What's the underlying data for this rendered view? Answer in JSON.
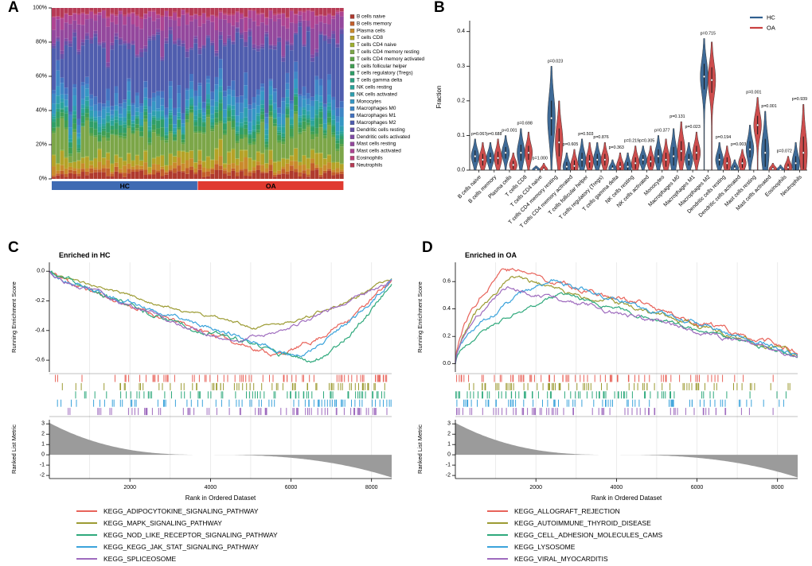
{
  "figure": {
    "panels": [
      {
        "label": "A"
      },
      {
        "label": "B"
      },
      {
        "label": "C"
      },
      {
        "label": "D"
      }
    ]
  },
  "chart_data": [
    {
      "id": "A",
      "type": "bar",
      "stacked": true,
      "ylabel": "Relative Percent",
      "yticks": [
        "0%",
        "20%",
        "40%",
        "60%",
        "80%",
        "100%"
      ],
      "groups": [
        {
          "label": "HC",
          "color": "#3F6BB3",
          "n": 35
        },
        {
          "label": "OA",
          "color": "#E03A30",
          "n": 35
        }
      ],
      "cell_types": [
        {
          "name": "B cells naive",
          "color": "#B03A2E",
          "mean_fraction": 0.03
        },
        {
          "name": "B cells memory",
          "color": "#C35F2B",
          "mean_fraction": 0.02
        },
        {
          "name": "Plasma cells",
          "color": "#C98A2C",
          "mean_fraction": 0.03
        },
        {
          "name": "T cells CD8",
          "color": "#B5A227",
          "mean_fraction": 0.045
        },
        {
          "name": "T cells CD4 naive",
          "color": "#9DB030",
          "mean_fraction": 0.004
        },
        {
          "name": "T cells CD4 memory resting",
          "color": "#7CA648",
          "mean_fraction": 0.13
        },
        {
          "name": "T cells CD4 memory activated",
          "color": "#5BA347",
          "mean_fraction": 0.012
        },
        {
          "name": "T cells follicular helper",
          "color": "#3F9E53",
          "mean_fraction": 0.028
        },
        {
          "name": "T cells regulatory (Tregs)",
          "color": "#2F9E68",
          "mean_fraction": 0.03
        },
        {
          "name": "T cells gamma delta",
          "color": "#2BA183",
          "mean_fraction": 0.012
        },
        {
          "name": "NK cells resting",
          "color": "#2AA39B",
          "mean_fraction": 0.02
        },
        {
          "name": "NK cells activated",
          "color": "#2E9FB0",
          "mean_fraction": 0.025
        },
        {
          "name": "Monocytes",
          "color": "#3597C4",
          "mean_fraction": 0.04
        },
        {
          "name": "Macrophages M0",
          "color": "#3E86C6",
          "mean_fraction": 0.05
        },
        {
          "name": "Macrophages M1",
          "color": "#4372C0",
          "mean_fraction": 0.035
        },
        {
          "name": "Macrophages M2",
          "color": "#4F5DAE",
          "mean_fraction": 0.27
        },
        {
          "name": "Dendritic cells resting",
          "color": "#6452A8",
          "mean_fraction": 0.02
        },
        {
          "name": "Dendritic cells activated",
          "color": "#7E4BA5",
          "mean_fraction": 0.012
        },
        {
          "name": "Mast cells resting",
          "color": "#94489D",
          "mean_fraction": 0.1
        },
        {
          "name": "Mast cells activated",
          "color": "#AE4492",
          "mean_fraction": 0.04
        },
        {
          "name": "Eosinophils",
          "color": "#BC4078",
          "mean_fraction": 0.006
        },
        {
          "name": "Neutrophils",
          "color": "#B63A55",
          "mean_fraction": 0.03
        }
      ]
    },
    {
      "id": "B",
      "type": "violin",
      "ylabel": "Fraction",
      "ylim": [
        0,
        0.4
      ],
      "yticks": [
        0,
        0.1,
        0.2,
        0.3,
        0.4
      ],
      "legend": [
        {
          "label": "HC",
          "color": "#2F5F8F"
        },
        {
          "label": "OA",
          "color": "#C94040"
        }
      ],
      "categories": [
        {
          "name": "B cells naive",
          "p": "p=0.067",
          "hc": {
            "median": 0.04,
            "max": 0.09
          },
          "oa": {
            "median": 0.03,
            "max": 0.08
          }
        },
        {
          "name": "B cells memory",
          "p": "p=0.688",
          "hc": {
            "median": 0.035,
            "max": 0.08
          },
          "oa": {
            "median": 0.035,
            "max": 0.09
          }
        },
        {
          "name": "Plasma cells",
          "p": "p<0.001",
          "hc": {
            "median": 0.05,
            "max": 0.1
          },
          "oa": {
            "median": 0.015,
            "max": 0.05
          }
        },
        {
          "name": "T cells CD8",
          "p": "p=0.698",
          "hc": {
            "median": 0.05,
            "max": 0.12
          },
          "oa": {
            "median": 0.05,
            "max": 0.11
          }
        },
        {
          "name": "T cells CD4 naive",
          "p": "p=1.000",
          "hc": {
            "median": 0.002,
            "max": 0.012
          },
          "oa": {
            "median": 0.002,
            "max": 0.02
          }
        },
        {
          "name": "T cells CD4 memory resting",
          "p": "p=0.023",
          "hc": {
            "median": 0.15,
            "max": 0.3
          },
          "oa": {
            "median": 0.08,
            "max": 0.2
          }
        },
        {
          "name": "T cells CD4 memory activated",
          "p": "p=0.605",
          "hc": {
            "median": 0.01,
            "max": 0.05
          },
          "oa": {
            "median": 0.012,
            "max": 0.06
          }
        },
        {
          "name": "T cells follicular helper",
          "p": "p=0.503",
          "hc": {
            "median": 0.03,
            "max": 0.09
          },
          "oa": {
            "median": 0.025,
            "max": 0.08
          }
        },
        {
          "name": "T cells regulatory (Tregs)",
          "p": "p=0.876",
          "hc": {
            "median": 0.03,
            "max": 0.08
          },
          "oa": {
            "median": 0.03,
            "max": 0.08
          }
        },
        {
          "name": "T cells gamma delta",
          "p": "p=0.363",
          "hc": {
            "median": 0.005,
            "max": 0.03
          },
          "oa": {
            "median": 0.01,
            "max": 0.05
          }
        },
        {
          "name": "NK cells resting",
          "p": "p=0.219",
          "hc": {
            "median": 0.01,
            "max": 0.05
          },
          "oa": {
            "median": 0.02,
            "max": 0.07
          }
        },
        {
          "name": "NK cells activated",
          "p": "p=0.305",
          "hc": {
            "median": 0.03,
            "max": 0.07
          },
          "oa": {
            "median": 0.025,
            "max": 0.07
          }
        },
        {
          "name": "Monocytes",
          "p": "p=0.377",
          "hc": {
            "median": 0.04,
            "max": 0.1
          },
          "oa": {
            "median": 0.03,
            "max": 0.09
          }
        },
        {
          "name": "Macrophages M0",
          "p": "p=0.131",
          "hc": {
            "median": 0.04,
            "max": 0.12
          },
          "oa": {
            "median": 0.055,
            "max": 0.14
          }
        },
        {
          "name": "Macrophages M1",
          "p": "p=0.023",
          "hc": {
            "median": 0.03,
            "max": 0.08
          },
          "oa": {
            "median": 0.05,
            "max": 0.11
          }
        },
        {
          "name": "Macrophages M2",
          "p": "p=0.715",
          "hc": {
            "median": 0.27,
            "max": 0.38
          },
          "oa": {
            "median": 0.26,
            "max": 0.37
          }
        },
        {
          "name": "Dendritic cells resting",
          "p": "p=0.194",
          "hc": {
            "median": 0.03,
            "max": 0.08
          },
          "oa": {
            "median": 0.02,
            "max": 0.07
          }
        },
        {
          "name": "Dendritic cells activated",
          "p": "p=0.003",
          "hc": {
            "median": 0.005,
            "max": 0.03
          },
          "oa": {
            "median": 0.02,
            "max": 0.06
          }
        },
        {
          "name": "Mast cells resting",
          "p": "p=0.001",
          "hc": {
            "median": 0.06,
            "max": 0.13
          },
          "oa": {
            "median": 0.13,
            "max": 0.21
          }
        },
        {
          "name": "Mast cells activated",
          "p": "p=0.001",
          "hc": {
            "median": 0.05,
            "max": 0.17
          },
          "oa": {
            "median": 0.004,
            "max": 0.02
          }
        },
        {
          "name": "Eosinophils",
          "p": "p=0.072",
          "hc": {
            "median": 0.002,
            "max": 0.015
          },
          "oa": {
            "median": 0.008,
            "max": 0.04
          }
        },
        {
          "name": "Neutrophils",
          "p": "p=0.939",
          "hc": {
            "median": 0.02,
            "max": 0.08
          },
          "oa": {
            "median": 0.05,
            "max": 0.19
          }
        }
      ]
    },
    {
      "id": "C",
      "type": "line",
      "title": "Enriched in HC",
      "ylabel_top": "Running Enrichment Score",
      "ylabel_bottom": "Ranked List Metric",
      "xlabel": "Rank in Ordered Dataset",
      "x_max": 8500,
      "xticks": [
        2000,
        4000,
        6000,
        8000
      ],
      "es_ticks": [
        0.0,
        -0.2,
        -0.4,
        -0.6
      ],
      "rlm_ticks": [
        3,
        2,
        1,
        0,
        -1,
        -2
      ],
      "series": [
        {
          "name": "KEGG_ADIPOCYTOKINE_SIGNALING_PATHWAY",
          "color": "#E8635A",
          "es_extreme": -0.56,
          "peak_pos": 0.66
        },
        {
          "name": "KEGG_MAPK_SIGNALING_PATHWAY",
          "color": "#9C9B33",
          "es_extreme": -0.38,
          "peak_pos": 0.6
        },
        {
          "name": "KEGG_NOD_LIKE_RECEPTOR_SIGNALING_PATHWAY",
          "color": "#2FA97C",
          "es_extreme": -0.61,
          "peak_pos": 0.75
        },
        {
          "name": "KEGG_KEGG_JAK_STAT_SIGNALING_PATHWAY",
          "color": "#3BA3DB",
          "es_extreme": -0.55,
          "peak_pos": 0.71
        },
        {
          "name": "KEGG_SPLICEOSOME",
          "color": "#9E6BBE",
          "es_extreme": -0.46,
          "peak_pos": 0.52
        }
      ]
    },
    {
      "id": "D",
      "type": "line",
      "title": "Enriched in OA",
      "ylabel_top": "Running Enrichment Score",
      "ylabel_bottom": "Ranked List Metric",
      "xlabel": "Rank in Ordered Dataset",
      "x_max": 8500,
      "xticks": [
        2000,
        4000,
        6000,
        8000
      ],
      "es_ticks": [
        0.6,
        0.4,
        0.2,
        0.0
      ],
      "rlm_ticks": [
        3,
        2,
        1,
        0,
        -1,
        -2
      ],
      "series": [
        {
          "name": "KEGG_ALLOGRAFT_REJECTION",
          "color": "#E8635A",
          "es_extreme": 0.71,
          "peak_pos": 0.14
        },
        {
          "name": "KEGG_AUTOIMMUNE_THYROID_DISEASE",
          "color": "#9C9B33",
          "es_extreme": 0.62,
          "peak_pos": 0.16
        },
        {
          "name": "KEGG_CELL_ADHESION_MOLECULES_CAMS",
          "color": "#2FA97C",
          "es_extreme": 0.5,
          "peak_pos": 0.3
        },
        {
          "name": "KEGG_LYSOSOME",
          "color": "#3BA3DB",
          "es_extreme": 0.61,
          "peak_pos": 0.28
        },
        {
          "name": "KEGG_VIRAL_MYOCARDITIS",
          "color": "#9E6BBE",
          "es_extreme": 0.55,
          "peak_pos": 0.15
        }
      ]
    }
  ]
}
